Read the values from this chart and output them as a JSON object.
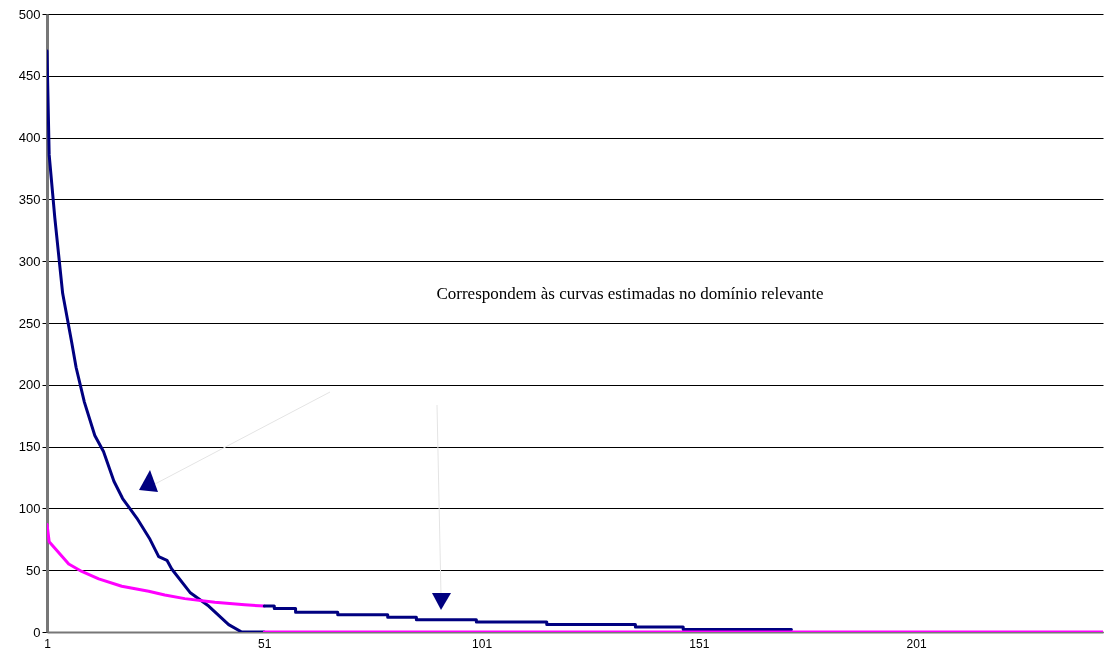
{
  "chart_data": {
    "type": "line",
    "xlim": [
      1,
      244
    ],
    "xticks": [
      1,
      51,
      101,
      151,
      201
    ],
    "ylim": [
      0,
      500
    ],
    "yticks": [
      0,
      50,
      100,
      150,
      200,
      250,
      300,
      350,
      400,
      450,
      500
    ],
    "grid": "y",
    "annotations": [
      "Correspondem às curvas estimadas no domínio relevante"
    ],
    "series": [
      {
        "color": "#000080",
        "x": [
          1,
          1.5,
          2.8,
          4.6,
          6.7,
          7.7,
          9.6,
          12,
          14,
          16.4,
          18.4,
          21.7,
          24.7,
          26.7,
          28.6,
          29.7,
          33.9,
          38.2,
          42.8,
          45.8,
          51
        ],
        "values": [
          470,
          386,
          335,
          274,
          234,
          214,
          186,
          159,
          146,
          122,
          108,
          92,
          75,
          61,
          58,
          51,
          32,
          21,
          6,
          0,
          0
        ]
      },
      {
        "color": "#ff00ff",
        "x": [
          1,
          1.5,
          6,
          9,
          12.9,
          18.2,
          24.4,
          28.1,
          32.7,
          39.6,
          46.5,
          51
        ],
        "values": [
          87,
          73,
          55,
          49,
          43,
          37,
          33,
          30,
          27,
          24,
          22,
          21
        ]
      },
      {
        "type": "step",
        "color": "#000080",
        "x": [
          51,
          53.3,
          58.2,
          67.9,
          79.4,
          86,
          99.8,
          116,
          136.4,
          147.4,
          172.3
        ],
        "values": [
          21,
          19,
          16,
          14,
          12,
          10,
          8,
          6,
          4,
          2,
          2
        ]
      },
      {
        "color": "#ff00ff",
        "x": [
          51,
          244
        ],
        "values": [
          0,
          0
        ]
      }
    ]
  }
}
